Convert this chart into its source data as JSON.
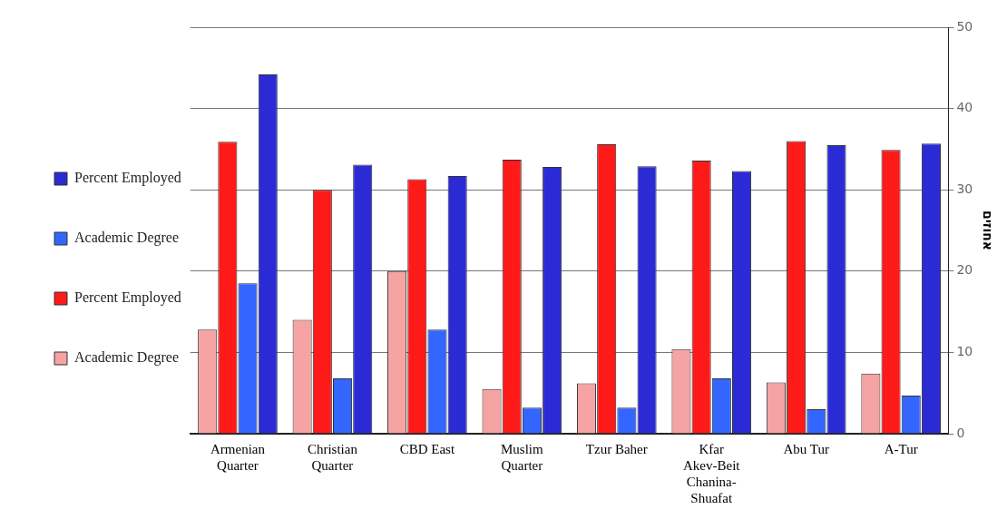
{
  "chart_data": {
    "type": "bar",
    "ylabel": "אחוזים",
    "categories": [
      "Armenian Quarter",
      "Christian Quarter",
      "CBD East",
      "Muslim Quarter",
      "Tzur Baher",
      "Kfar Akev-Beit Chanina-Shuafat",
      "Abu Tur",
      "A-Tur"
    ],
    "series": [
      {
        "name": "Academic Degree",
        "color": "#f6a3a3",
        "values": [
          12.8,
          14.0,
          20.0,
          5.5,
          6.2,
          10.4,
          6.3,
          7.4
        ]
      },
      {
        "name": "Percent Employed",
        "color": "#ff1a1a",
        "values": [
          35.9,
          30.0,
          31.3,
          33.7,
          35.6,
          33.6,
          36.0,
          34.9
        ]
      },
      {
        "name": "Academic Degree",
        "color": "#3366ff",
        "values": [
          18.5,
          6.8,
          12.8,
          3.2,
          3.2,
          6.8,
          3.0,
          4.7
        ]
      },
      {
        "name": "Percent Employed",
        "color": "#2b2bd6",
        "values": [
          44.2,
          33.1,
          31.7,
          32.8,
          32.9,
          32.3,
          35.5,
          35.7
        ]
      }
    ],
    "ylim": [
      0,
      50
    ],
    "yticks": [
      0,
      10,
      20,
      30,
      40,
      50
    ],
    "grid": "y",
    "legend": "left"
  }
}
